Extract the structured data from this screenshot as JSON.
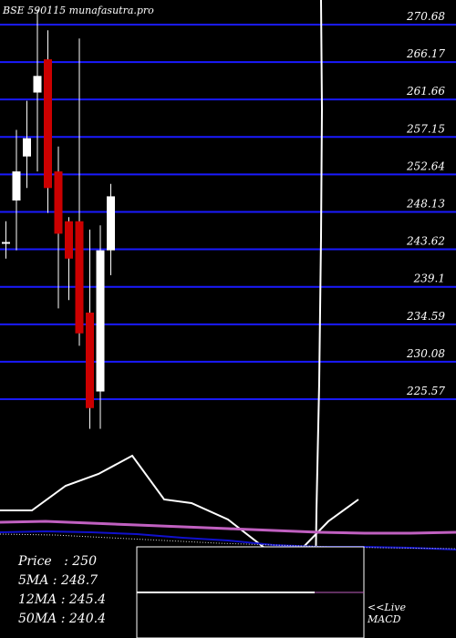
{
  "watermark": "BSE 590115 munafasutra.pro",
  "chart_data": {
    "type": "candlestick",
    "y_ticks": [
      270.68,
      266.17,
      261.66,
      257.15,
      252.64,
      248.13,
      243.62,
      239.1,
      234.59,
      230.08,
      225.57
    ],
    "candles": [
      {
        "open": 244.5,
        "close": 244.5,
        "high": 247.0,
        "low": 242.5
      },
      {
        "open": 249.5,
        "close": 253.0,
        "high": 258.0,
        "low": 243.5
      },
      {
        "open": 254.8,
        "close": 257.0,
        "high": 261.5,
        "low": 251.0
      },
      {
        "open": 262.5,
        "close": 264.5,
        "high": 272.5,
        "low": 253.0
      },
      {
        "open": 266.5,
        "close": 251.0,
        "high": 270.0,
        "low": 248.0
      },
      {
        "open": 253.0,
        "close": 245.5,
        "high": 256.0,
        "low": 236.5
      },
      {
        "open": 247.0,
        "close": 242.5,
        "high": 247.5,
        "low": 237.5
      },
      {
        "open": 247.0,
        "close": 233.5,
        "high": 269.0,
        "low": 232.0
      },
      {
        "open": 236.0,
        "close": 224.5,
        "high": 246.0,
        "low": 222.0
      },
      {
        "open": 226.5,
        "close": 243.5,
        "high": 246.5,
        "low": 222.0
      },
      {
        "open": 243.5,
        "close": 250.0,
        "high": 251.5,
        "low": 240.5
      }
    ]
  },
  "info": {
    "price_label": "Price",
    "price_value": "250",
    "ma5_label": "5MA",
    "ma5_value": "248.7",
    "ma12_label": "12MA",
    "ma12_value": "245.4",
    "ma50_label": "50MA",
    "ma50_value": "240.4"
  },
  "macd_label": "<<Live MACD",
  "colors": {
    "up": "#ffffff",
    "down": "#cc0000",
    "grid": "#1a1aff",
    "ma_pink": "#c060c0",
    "ma_blue": "#1010cc",
    "text": "#ffffff"
  }
}
